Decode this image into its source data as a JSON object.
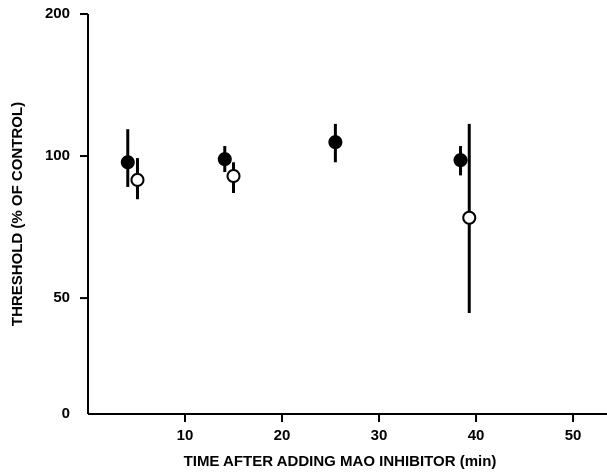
{
  "chart_data": {
    "type": "scatter",
    "x_label": "TIME AFTER ADDING MAO INHIBITOR (min)",
    "y_label": "THRESHOLD (% OF CONTROL)",
    "y_axis_floor_label": "0",
    "xlim": [
      0,
      53.5
    ],
    "xticks": [
      10,
      20,
      30,
      40,
      50
    ],
    "ylim": [
      28.4,
      200
    ],
    "yticks": [
      50,
      100,
      200
    ],
    "y_log": true,
    "series": [
      {
        "marker": "filled",
        "color": "#000000",
        "x": [
          4.1,
          14.1,
          25.5,
          38.4
        ],
        "values": [
          97,
          98.5,
          107,
          98
        ],
        "lower": [
          86,
          92.5,
          97,
          91
        ],
        "upper": [
          114,
          105,
          117,
          105
        ]
      },
      {
        "marker": "open",
        "color": "#000000",
        "x": [
          5.1,
          15.0,
          39.3
        ],
        "values": [
          89,
          90.7,
          74
        ],
        "lower": [
          81,
          83.5,
          46.5
        ],
        "upper": [
          99,
          97,
          117
        ]
      }
    ]
  }
}
